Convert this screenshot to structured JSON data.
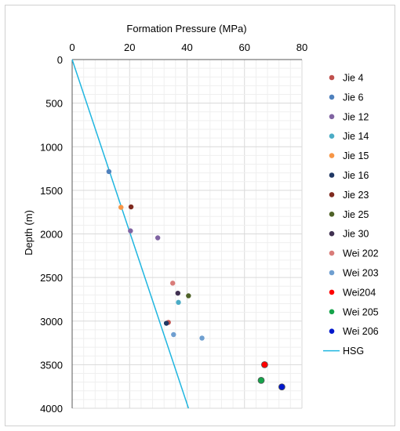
{
  "chart_data": {
    "type": "scatter",
    "xlabel": "Formation Pressure (MPa)",
    "ylabel": "Depth (m)",
    "x_ticks": [
      "0",
      "20",
      "40",
      "60",
      "80"
    ],
    "y_ticks": [
      "0",
      "500",
      "1000",
      "1500",
      "2000",
      "2500",
      "3000",
      "3500",
      "4000"
    ],
    "xlim": [
      0,
      80
    ],
    "ylim": [
      0,
      4000
    ],
    "y_reversed": true,
    "x_axis_position": "top",
    "grid": true,
    "legend_position": "right",
    "series": [
      {
        "name": "Jie 4",
        "color": "#c0504d",
        "points": [
          [
            33.5,
            3015
          ]
        ]
      },
      {
        "name": "Jie 6",
        "color": "#4f81bd",
        "points": [
          [
            12.8,
            1285
          ]
        ]
      },
      {
        "name": "Jie 12",
        "color": "#8064a2",
        "points": [
          [
            20.3,
            1965
          ],
          [
            29.8,
            2045
          ]
        ]
      },
      {
        "name": "Jie 14",
        "color": "#4bacc6",
        "points": [
          [
            37.0,
            2785
          ]
        ]
      },
      {
        "name": "Jie 15",
        "color": "#f79646",
        "points": [
          [
            17.0,
            1695
          ]
        ]
      },
      {
        "name": "Jie 16",
        "color": "#1f3864",
        "points": [
          [
            32.8,
            3025
          ]
        ]
      },
      {
        "name": "Jie 23",
        "color": "#7f2a1f",
        "points": [
          [
            20.5,
            1690
          ]
        ]
      },
      {
        "name": "Jie 25",
        "color": "#4f6228",
        "points": [
          [
            40.5,
            2710
          ]
        ]
      },
      {
        "name": "Jie 30",
        "color": "#403151",
        "points": [
          [
            36.8,
            2680
          ]
        ]
      },
      {
        "name": "Wei 202",
        "color": "#d97c79",
        "points": [
          [
            35.0,
            2565
          ]
        ]
      },
      {
        "name": "Wei 203",
        "color": "#6f9fd0",
        "points": [
          [
            35.3,
            3155
          ],
          [
            45.2,
            3195
          ]
        ]
      },
      {
        "name": "Wei204",
        "color": "#ff0000",
        "points": [
          [
            67.0,
            3500
          ]
        ]
      },
      {
        "name": "Wei 205",
        "color": "#16a34a",
        "points": [
          [
            65.8,
            3680
          ]
        ]
      },
      {
        "name": "Wei 206",
        "color": "#0018cc",
        "points": [
          [
            73.0,
            3755
          ]
        ]
      }
    ],
    "lines": [
      {
        "name": "HSG",
        "color": "#1fb6e0",
        "points": [
          [
            0,
            0
          ],
          [
            40.5,
            4000
          ]
        ]
      }
    ]
  }
}
